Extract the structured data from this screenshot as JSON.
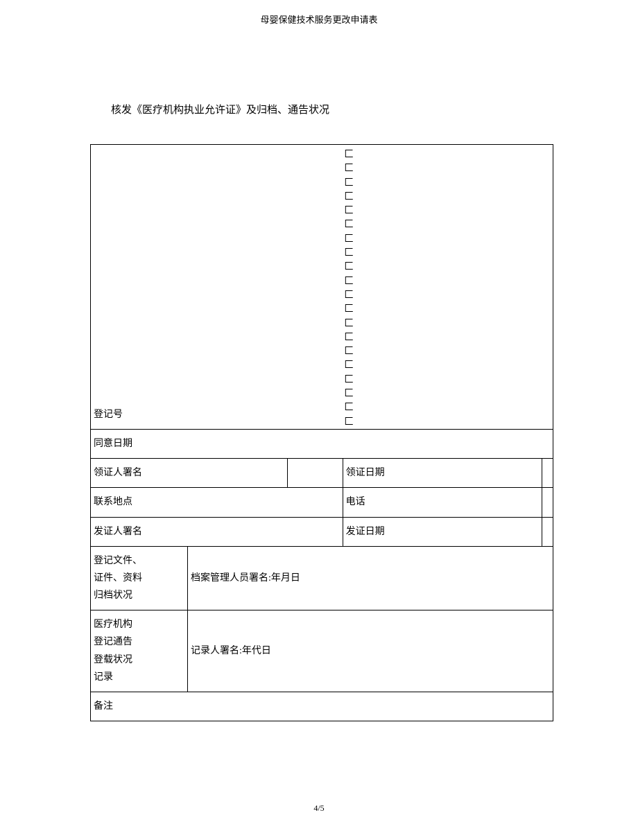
{
  "header": "母婴保健技术服务更改申请表",
  "section_title": "核发《医疗机构执业允许证》及归档、通告状况",
  "table": {
    "registration_number_label": "登记号",
    "bracket_char": "匚",
    "bracket_count": 20,
    "approval_date_label": "同意日期",
    "recipient_sign_label": "领证人署名",
    "recipient_date_label": "领证日期",
    "contact_location_label": "联系地点",
    "phone_label": "电话",
    "issuer_sign_label": "发证人署名",
    "issue_date_label": "发证日期",
    "archive_status_lines": [
      "登记文件、",
      "证件、资料",
      "归档状况"
    ],
    "archive_manager_label": "档案管理人员署名:年月日",
    "announcement_status_lines": [
      "医疗机构",
      "登记通告",
      "登载状况",
      "记录"
    ],
    "recorder_label": "记录人署名:年代日",
    "remarks_label": "备注"
  },
  "footer": "4/5",
  "colors": {
    "text": "#000000",
    "background": "#ffffff",
    "border": "#000000"
  }
}
